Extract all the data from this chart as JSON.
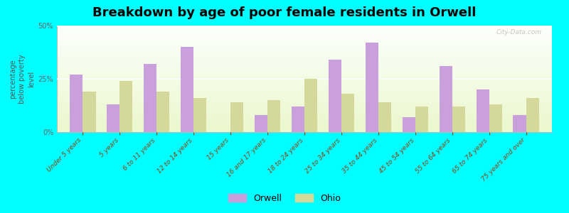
{
  "title": "Breakdown by age of poor female residents in Orwell",
  "ylabel": "percentage\nbelow poverty\nlevel",
  "background_color": "#00FFFF",
  "categories": [
    "Under 5 years",
    "5 years",
    "6 to 11 years",
    "12 to 14 years",
    "15 years",
    "16 and 17 years",
    "18 to 24 years",
    "25 to 34 years",
    "35 to 44 years",
    "45 to 54 years",
    "55 to 64 years",
    "65 to 74 years",
    "75 years and over"
  ],
  "orwell_values": [
    27,
    13,
    32,
    40,
    0,
    8,
    12,
    34,
    42,
    7,
    31,
    20,
    8
  ],
  "ohio_values": [
    19,
    24,
    19,
    16,
    14,
    15,
    25,
    18,
    14,
    12,
    12,
    13,
    16
  ],
  "orwell_color": "#c9a0dc",
  "ohio_color": "#d4d89a",
  "ylim": [
    0,
    50
  ],
  "yticks": [
    0,
    25,
    50
  ],
  "ytick_labels": [
    "0%",
    "25%",
    "50%"
  ],
  "bar_width": 0.35,
  "legend_orwell": "Orwell",
  "legend_ohio": "Ohio",
  "watermark": "City-Data.com",
  "title_fontsize": 13,
  "axis_label_fontsize": 7,
  "tick_fontsize": 7
}
